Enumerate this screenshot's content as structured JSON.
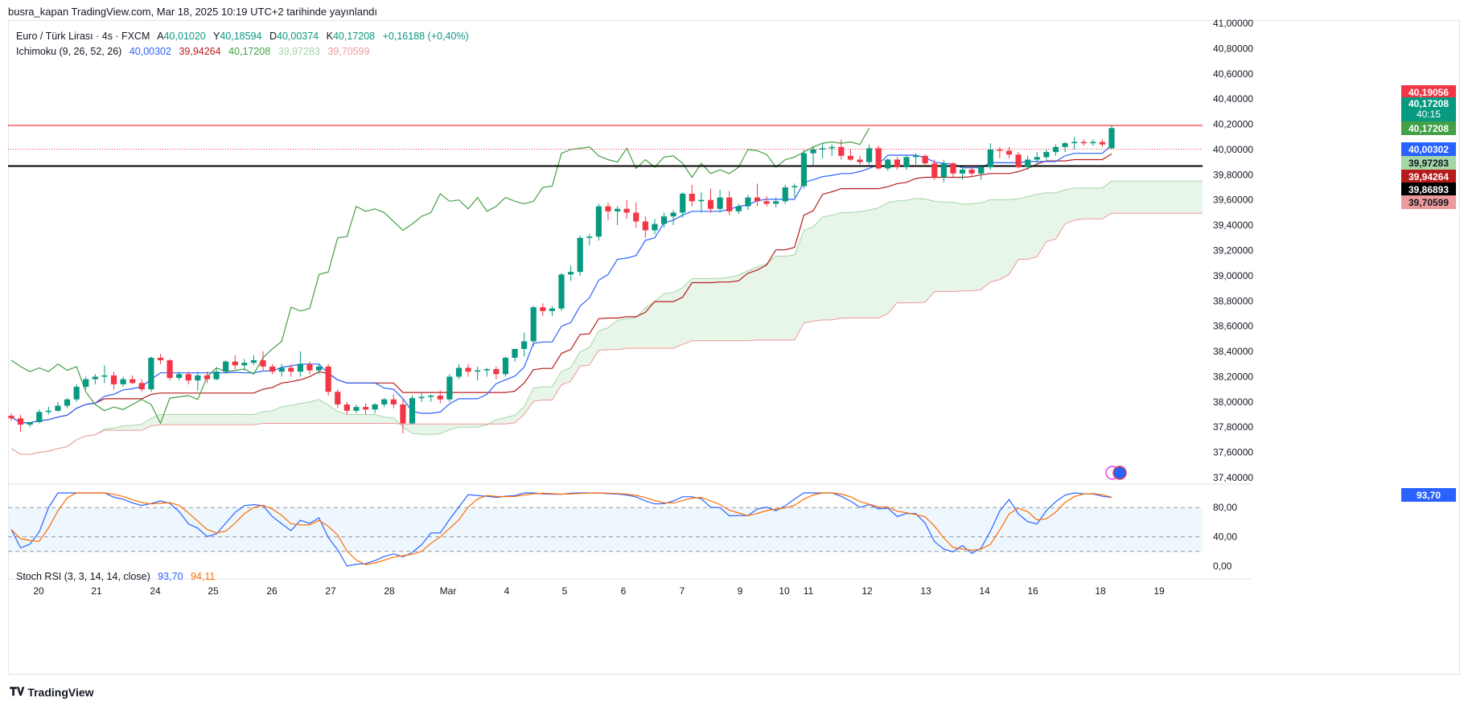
{
  "header": {
    "publish_line": "busra_kapan TradingView.com, Mar 18, 2025 10:19 UTC+2 tarihinde yayınlandı"
  },
  "legend": {
    "symbol": "Euro / Türk Lirası · 4s · FXCM",
    "open_label": "A",
    "open": "40,01020",
    "high_label": "Y",
    "high": "40,18594",
    "low_label": "D",
    "low": "40,00374",
    "close_label": "K",
    "close": "40,17208",
    "change": "+0,16188 (+0,40%)",
    "ichimoku_label": "Ichimoku (9, 26, 52, 26)",
    "ichimoku_values": [
      "40,00302",
      "39,94264",
      "40,17208",
      "39,97283",
      "39,70599"
    ],
    "rsi_label": "Stoch RSI (3, 3, 14, 14, close)",
    "rsi_k": "93,70",
    "rsi_d": "94,11"
  },
  "price_tags": [
    {
      "value": "40,19056",
      "color": "#f23645"
    },
    {
      "value": "40,17208",
      "sub": "40:15",
      "color": "#089981"
    },
    {
      "value": "40,17208",
      "color": "#43a047"
    },
    {
      "value": "40,00302",
      "color": "#2962ff"
    },
    {
      "value": "39,97283",
      "color": "#a5d6a7",
      "text": "#131722"
    },
    {
      "value": "39,94264",
      "color": "#b71c1c"
    },
    {
      "value": "39,86893",
      "color": "#000000"
    },
    {
      "value": "39,70599",
      "color": "#ef9a9a",
      "text": "#131722"
    }
  ],
  "rsi_tags": [
    {
      "value": "93,70",
      "color": "#2962ff"
    }
  ],
  "footer": {
    "brand": "TradingView"
  },
  "colors": {
    "up": "#089981",
    "down": "#f23645",
    "tenkan": "#2962ff",
    "kijun": "#b71c1c",
    "chikou": "#43a047",
    "span_a": "#a5d6a7",
    "span_b": "#ef9a9a",
    "rsi_k": "#2962ff",
    "rsi_d": "#ff6d00"
  },
  "chart_data": {
    "type": "candlestick",
    "title": "Euro / Türk Lirası · 4s · FXCM",
    "y_ticks": [
      "41,00000",
      "40,80000",
      "40,60000",
      "40,40000",
      "40,20000",
      "40,00000",
      "39,80000",
      "39,60000",
      "39,40000",
      "39,20000",
      "39,00000",
      "38,80000",
      "38,60000",
      "38,40000",
      "38,20000",
      "38,00000",
      "37,80000",
      "37,60000",
      "37,40000"
    ],
    "ylim": [
      37.35,
      41.0
    ],
    "x_labels": [
      "20",
      "21",
      "24",
      "25",
      "26",
      "27",
      "28",
      "Mar",
      "4",
      "5",
      "6",
      "7",
      "9",
      "10",
      "11",
      "12",
      "13",
      "14",
      "16",
      "18",
      "19"
    ],
    "horizontal_lines": [
      40.19056,
      40.00302,
      39.86893
    ],
    "candles": [
      [
        37.89,
        37.91,
        37.85,
        37.87
      ],
      [
        37.87,
        37.9,
        37.76,
        37.82
      ],
      [
        37.82,
        37.84,
        37.8,
        37.84
      ],
      [
        37.84,
        37.94,
        37.83,
        37.92
      ],
      [
        37.92,
        37.96,
        37.9,
        37.93
      ],
      [
        37.93,
        38.0,
        37.92,
        37.97
      ],
      [
        37.97,
        38.03,
        37.95,
        38.02
      ],
      [
        38.02,
        38.14,
        38.0,
        38.12
      ],
      [
        38.12,
        38.2,
        38.1,
        38.18
      ],
      [
        38.18,
        38.22,
        38.14,
        38.2
      ],
      [
        38.2,
        38.29,
        38.15,
        38.21
      ],
      [
        38.21,
        38.24,
        38.1,
        38.14
      ],
      [
        38.14,
        38.2,
        38.12,
        38.18
      ],
      [
        38.18,
        38.21,
        38.14,
        38.15
      ],
      [
        38.15,
        38.18,
        38.08,
        38.1
      ],
      [
        38.1,
        38.36,
        38.08,
        38.35
      ],
      [
        38.35,
        38.38,
        38.3,
        38.33
      ],
      [
        38.33,
        38.34,
        38.17,
        38.19
      ],
      [
        38.19,
        38.24,
        38.17,
        38.22
      ],
      [
        38.22,
        38.24,
        38.14,
        38.17
      ],
      [
        38.17,
        38.24,
        38.09,
        38.21
      ],
      [
        38.21,
        38.24,
        38.15,
        38.18
      ],
      [
        38.18,
        38.27,
        38.17,
        38.24
      ],
      [
        38.24,
        38.33,
        38.23,
        38.32
      ],
      [
        38.32,
        38.37,
        38.26,
        38.29
      ],
      [
        38.29,
        38.34,
        38.25,
        38.31
      ],
      [
        38.31,
        38.37,
        38.29,
        38.33
      ],
      [
        38.33,
        38.4,
        38.25,
        38.28
      ],
      [
        38.28,
        38.3,
        38.22,
        38.24
      ],
      [
        38.24,
        38.3,
        38.2,
        38.27
      ],
      [
        38.27,
        38.3,
        38.2,
        38.24
      ],
      [
        38.24,
        38.4,
        38.2,
        38.3
      ],
      [
        38.3,
        38.32,
        38.22,
        38.25
      ],
      [
        38.25,
        38.3,
        38.22,
        38.28
      ],
      [
        38.28,
        38.3,
        38.05,
        38.08
      ],
      [
        38.08,
        38.1,
        37.95,
        37.98
      ],
      [
        37.98,
        38.0,
        37.9,
        37.93
      ],
      [
        37.93,
        37.98,
        37.91,
        37.96
      ],
      [
        37.96,
        37.99,
        37.9,
        37.94
      ],
      [
        37.94,
        37.99,
        37.91,
        37.98
      ],
      [
        37.98,
        38.03,
        37.96,
        38.02
      ],
      [
        38.02,
        38.06,
        37.95,
        37.98
      ],
      [
        37.98,
        38.02,
        37.75,
        37.83
      ],
      [
        37.83,
        38.05,
        37.82,
        38.03
      ],
      [
        38.03,
        38.07,
        38.0,
        38.04
      ],
      [
        38.04,
        38.06,
        38.0,
        38.05
      ],
      [
        38.05,
        38.09,
        37.99,
        38.02
      ],
      [
        38.02,
        38.22,
        38.0,
        38.2
      ],
      [
        38.2,
        38.3,
        38.18,
        38.27
      ],
      [
        38.27,
        38.3,
        38.2,
        38.24
      ],
      [
        38.24,
        38.28,
        38.17,
        38.25
      ],
      [
        38.25,
        38.27,
        38.2,
        38.26
      ],
      [
        38.26,
        38.28,
        38.18,
        38.22
      ],
      [
        38.22,
        38.36,
        38.2,
        38.35
      ],
      [
        38.35,
        38.42,
        38.32,
        38.42
      ],
      [
        38.42,
        38.55,
        38.36,
        38.48
      ],
      [
        38.48,
        38.76,
        38.44,
        38.75
      ],
      [
        38.75,
        38.78,
        38.68,
        38.72
      ],
      [
        38.72,
        38.76,
        38.68,
        38.74
      ],
      [
        38.74,
        39.02,
        38.72,
        39.01
      ],
      [
        39.01,
        39.08,
        38.96,
        39.03
      ],
      [
        39.03,
        39.32,
        39.0,
        39.3
      ],
      [
        39.3,
        39.33,
        39.24,
        39.31
      ],
      [
        39.31,
        39.57,
        39.28,
        39.55
      ],
      [
        39.55,
        39.58,
        39.44,
        39.51
      ],
      [
        39.51,
        39.55,
        39.4,
        39.53
      ],
      [
        39.53,
        39.6,
        39.45,
        39.5
      ],
      [
        39.5,
        39.58,
        39.38,
        39.43
      ],
      [
        39.43,
        39.47,
        39.3,
        39.36
      ],
      [
        39.36,
        39.45,
        39.33,
        39.41
      ],
      [
        39.41,
        39.5,
        39.38,
        39.47
      ],
      [
        39.47,
        39.52,
        39.4,
        39.5
      ],
      [
        39.5,
        39.66,
        39.46,
        39.65
      ],
      [
        39.65,
        39.72,
        39.55,
        39.59
      ],
      [
        39.59,
        39.66,
        39.5,
        39.6
      ],
      [
        39.6,
        39.69,
        39.5,
        39.53
      ],
      [
        39.53,
        39.68,
        39.5,
        39.62
      ],
      [
        39.62,
        39.67,
        39.48,
        39.51
      ],
      [
        39.51,
        39.57,
        39.49,
        39.55
      ],
      [
        39.55,
        39.64,
        39.52,
        39.62
      ],
      [
        39.62,
        39.73,
        39.55,
        39.59
      ],
      [
        39.59,
        39.63,
        39.55,
        39.57
      ],
      [
        39.57,
        39.62,
        39.54,
        39.59
      ],
      [
        39.59,
        39.72,
        39.57,
        39.7
      ],
      [
        39.7,
        39.73,
        39.62,
        39.71
      ],
      [
        39.71,
        40.0,
        39.69,
        39.97
      ],
      [
        39.97,
        40.03,
        39.88,
        40.0
      ],
      [
        40.0,
        40.05,
        39.93,
        40.01
      ],
      [
        40.01,
        40.04,
        39.95,
        40.02
      ],
      [
        40.02,
        40.08,
        39.92,
        39.95
      ],
      [
        39.95,
        40.0,
        39.91,
        39.92
      ],
      [
        39.92,
        39.95,
        39.88,
        39.9
      ],
      [
        39.9,
        40.04,
        39.88,
        40.01
      ],
      [
        40.01,
        40.03,
        39.84,
        39.85
      ],
      [
        39.85,
        39.93,
        39.83,
        39.92
      ],
      [
        39.92,
        39.94,
        39.84,
        39.86
      ],
      [
        39.86,
        39.95,
        39.84,
        39.94
      ],
      [
        39.94,
        39.97,
        39.88,
        39.95
      ],
      [
        39.95,
        39.96,
        39.87,
        39.89
      ],
      [
        39.89,
        39.92,
        39.76,
        39.78
      ],
      [
        39.78,
        39.92,
        39.74,
        39.89
      ],
      [
        39.89,
        39.9,
        39.78,
        39.81
      ],
      [
        39.81,
        39.86,
        39.76,
        39.84
      ],
      [
        39.84,
        39.87,
        39.79,
        39.81
      ],
      [
        39.81,
        39.88,
        39.76,
        39.86
      ],
      [
        39.86,
        40.05,
        39.84,
        40.0
      ],
      [
        40.0,
        40.02,
        39.93,
        39.99
      ],
      [
        39.99,
        40.02,
        39.93,
        39.96
      ],
      [
        39.96,
        39.98,
        39.85,
        39.86
      ],
      [
        39.86,
        39.95,
        39.84,
        39.92
      ],
      [
        39.92,
        39.98,
        39.88,
        39.94
      ],
      [
        39.94,
        40.0,
        39.92,
        39.98
      ],
      [
        39.98,
        40.04,
        39.95,
        40.02
      ],
      [
        40.02,
        40.06,
        39.98,
        40.05
      ],
      [
        40.05,
        40.1,
        40.0,
        40.06
      ],
      [
        40.06,
        40.08,
        40.03,
        40.05
      ],
      [
        40.05,
        40.08,
        40.03,
        40.06
      ],
      [
        40.06,
        40.08,
        40.02,
        40.04
      ],
      [
        40.01,
        40.19,
        40.0,
        40.17
      ]
    ],
    "stoch_rsi": {
      "k_last": 93.7,
      "d_last": 94.11,
      "levels": [
        80,
        40,
        20
      ],
      "y_ticks": [
        "80,00",
        "40,00",
        "0,00"
      ]
    }
  }
}
